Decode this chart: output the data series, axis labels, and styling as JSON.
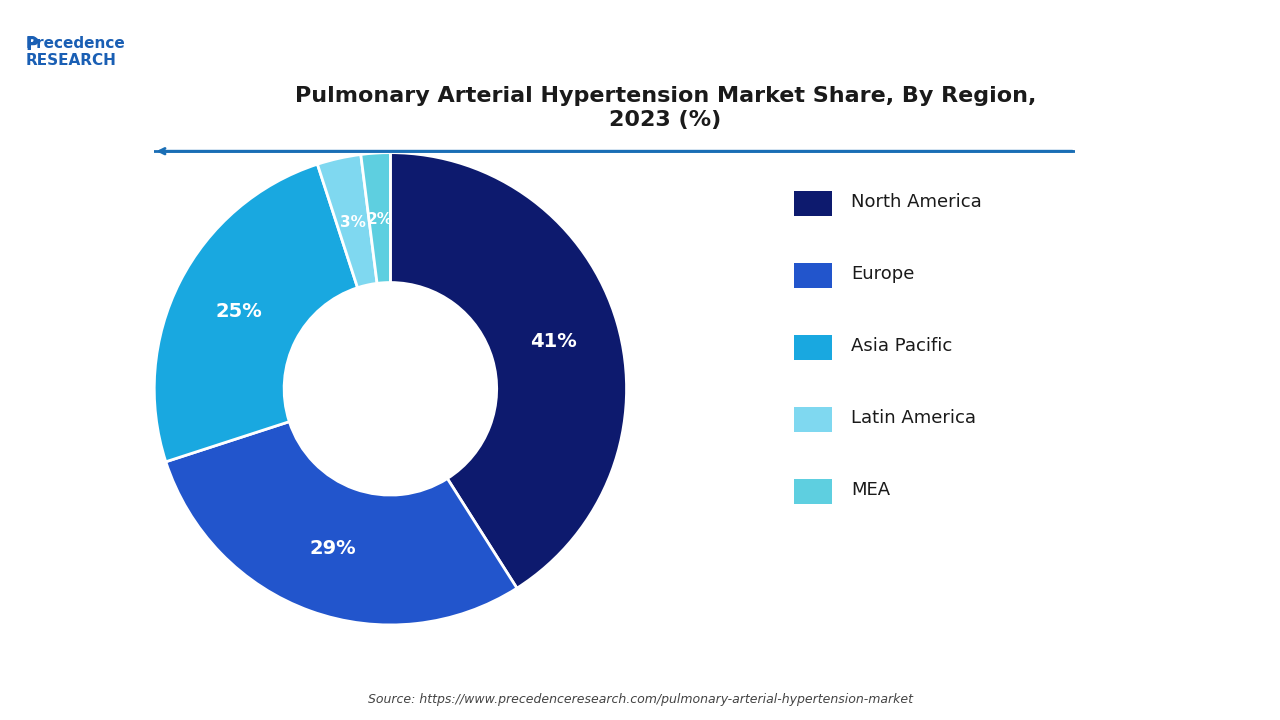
{
  "title": "Pulmonary Arterial Hypertension Market Share, By Region,\n2023 (%)",
  "labels": [
    "North America",
    "Europe",
    "Asia Pacific",
    "Latin America",
    "MEA"
  ],
  "values": [
    41,
    29,
    25,
    3,
    2
  ],
  "colors": [
    "#0d1b6e",
    "#2255cc",
    "#1aabe0",
    "#7fd8f0",
    "#0d1b6e"
  ],
  "slice_colors": [
    "#0d1b6e",
    "#2255cc",
    "#19a8e0",
    "#7fd8f0",
    "#0d1b6e"
  ],
  "legend_colors": [
    "#0d1b6e",
    "#2255cc",
    "#19a8e0",
    "#7fd8f0",
    "#7fd8f0"
  ],
  "source_text": "Source: https://www.precedenceresearch.com/pulmonary-arterial-hypertension-market",
  "background_color": "#ffffff",
  "text_color": "#000000",
  "label_color": "#ffffff"
}
